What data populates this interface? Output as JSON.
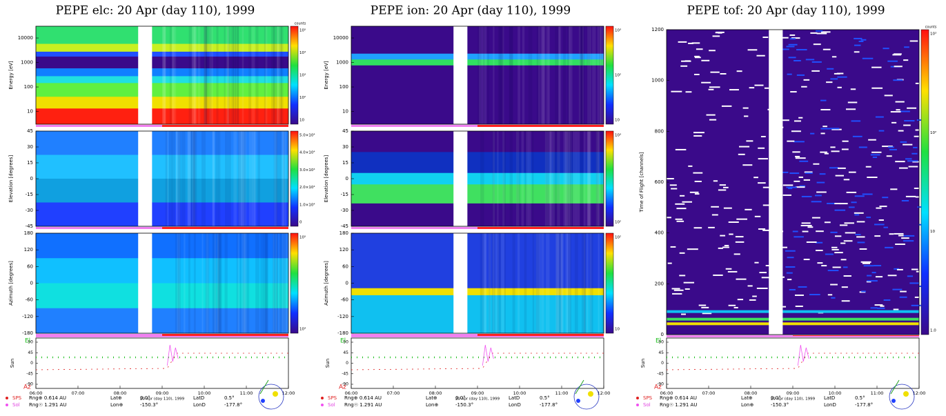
{
  "panels": [
    {
      "title": "PEPE elc: 20 Apr (day 110), 1999",
      "plots": [
        {
          "ylabel": "Energy [eV]",
          "yticks": [
            10000,
            1000,
            100,
            10
          ],
          "cbar_label": "counts",
          "cbar_ticks": [
            "10⁵",
            "10⁴",
            "10³",
            "10²",
            "10"
          ]
        },
        {
          "ylabel": "Elevation [degrees]",
          "yticks": [
            45,
            30,
            15,
            0,
            -15,
            -30,
            -45
          ],
          "cbar_ticks": [
            "5.0×10⁴",
            "4.0×10⁴",
            "3.0×10⁴",
            "2.0×10⁴",
            "1.0×10⁴",
            "0"
          ]
        },
        {
          "ylabel": "Azimuth [degrees]",
          "yticks": [
            180,
            120,
            60,
            0,
            -60,
            -120,
            -180
          ],
          "cbar_ticks": [
            "10⁵",
            "10⁴"
          ]
        }
      ],
      "orbit": {
        "ylabel": "Sun",
        "el": "El",
        "az": "Az",
        "yticks": [
          90,
          45,
          0,
          -45,
          -90
        ]
      },
      "xticks": [
        "06:00",
        "07:00",
        "08:00",
        "09:00",
        "10:00",
        "11:00",
        "12:00"
      ],
      "xlabel": "20 Apr (day 110), 1999",
      "footer": [
        [
          "SPS",
          "Rng⊕ 0.614 AU",
          "Lat⊕",
          "0.0°",
          "LatD",
          "0.5°"
        ],
        [
          "Sol",
          "Rng☉ 1.291 AU",
          "Lon⊕",
          "-150.3°",
          "LonD",
          "-177.8°"
        ]
      ]
    },
    {
      "title": "PEPE ion: 20 Apr (day 110), 1999",
      "plots": [
        {
          "ylabel": "Energy [eV]",
          "yticks": [
            10000,
            1000,
            100,
            10
          ],
          "cbar_ticks": [
            "10³",
            "10²",
            "10"
          ]
        },
        {
          "ylabel": "Elevation [degrees]",
          "yticks": [
            45,
            30,
            15,
            0,
            -15,
            -30,
            -45
          ],
          "cbar_ticks": [
            "10³",
            "10²"
          ]
        },
        {
          "ylabel": "Azimuth [degrees]",
          "yticks": [
            180,
            120,
            60,
            0,
            -60,
            -120,
            -180
          ],
          "cbar_ticks": [
            "10²",
            "10"
          ]
        }
      ],
      "orbit": {
        "ylabel": "Sun",
        "el": "El",
        "az": "Az",
        "yticks": [
          90,
          45,
          0,
          -45,
          -90
        ]
      },
      "xticks": [
        "06:00",
        "07:00",
        "08:00",
        "09:00",
        "10:00",
        "11:00",
        "12:00"
      ],
      "xlabel": "20 Apr (day 110), 1999",
      "footer": [
        [
          "SPS",
          "Rng⊕ 0.614 AU",
          "Lat⊕",
          "0.0°",
          "LatD",
          "0.5°"
        ],
        [
          "Sol",
          "Rng☉ 1.291 AU",
          "Lon⊕",
          "-150.3°",
          "LonD",
          "-177.8°"
        ]
      ]
    },
    {
      "title": "PEPE tof: 20 Apr (day 110), 1999",
      "plots": [
        {
          "ylabel": "Time of Flight [channels]",
          "yticks": [
            1200,
            1000,
            800,
            600,
            400,
            200,
            0
          ],
          "cbar_label": "counts",
          "cbar_ticks": [
            "10³",
            "10²",
            "10",
            "1.0"
          ]
        }
      ],
      "orbit": {
        "ylabel": "Sun",
        "el": "El",
        "az": "Az",
        "yticks": [
          90,
          45,
          0,
          -45,
          -90
        ]
      },
      "xticks": [
        "06:00",
        "07:00",
        "08:00",
        "09:00",
        "10:00",
        "11:00",
        "12:00"
      ],
      "xlabel": "20 Apr (day 110), 1999",
      "footer": [
        [
          "SPS",
          "Rng⊕ 0.614 AU",
          "Lat⊕",
          "0.0°",
          "LatD",
          "0.5°"
        ],
        [
          "Sol",
          "Rng☉ 1.291 AU",
          "Lon⊕",
          "-150.3°",
          "LonD",
          "-177.8°"
        ]
      ]
    }
  ]
}
